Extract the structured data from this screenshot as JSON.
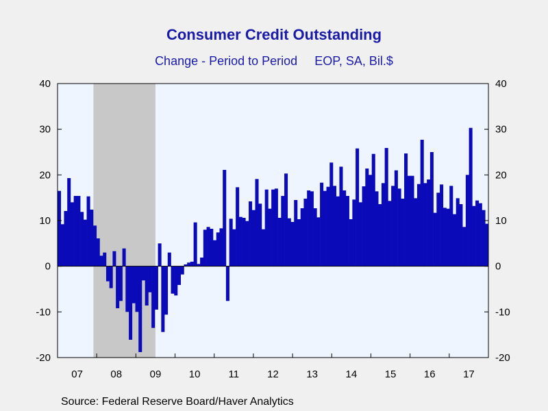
{
  "chart_data": {
    "type": "bar",
    "title": "Consumer Credit Outstanding",
    "subtitle": "Change - Period to Period     EOP, SA, Bil.$",
    "source": "Source:  Federal Reserve Board/Haver Analytics",
    "ylim": [
      -20,
      40
    ],
    "y_ticks": [
      40,
      30,
      20,
      10,
      0,
      -10,
      -20
    ],
    "x_tick_labels": [
      "07",
      "08",
      "09",
      "10",
      "11",
      "12",
      "13",
      "14",
      "15",
      "16",
      "17"
    ],
    "x_range": [
      "2007-01",
      "2017-12"
    ],
    "recession_shading": {
      "start": "2007-12",
      "end": "2009-06"
    },
    "grid": false,
    "colors": {
      "bars": "#0a0ab8",
      "plot_background": "#eef5ff",
      "recession": "#c8c8c8",
      "text_title": "#1a1aa8"
    },
    "series": [
      {
        "values": [
          16.5,
          9.2,
          12.1,
          19.3,
          14.0,
          15.4,
          15.4,
          11.9,
          10.2,
          15.3,
          12.4,
          8.9,
          6.1,
          2.3,
          3.0,
          -3.3,
          -4.8,
          3.3,
          -9.2,
          -7.6,
          3.9,
          -10.0,
          -16.1,
          -8.1,
          -10.0,
          -18.8,
          -3.1,
          -8.6,
          -5.7,
          -13.5,
          -9.5,
          5.0,
          -14.4,
          -10.6,
          3.0,
          -6.0,
          -6.4,
          -4.1,
          -1.8,
          0.4,
          0.8,
          1.0,
          9.6,
          0.5,
          1.9,
          8.0,
          8.6,
          8.2,
          5.7,
          7.4,
          8.3,
          21.1,
          -7.6,
          10.4,
          8.1,
          17.3,
          10.8,
          10.6,
          9.9,
          14.2,
          12.3,
          19.1,
          13.7,
          8.1,
          16.8,
          12.6,
          16.8,
          17.0,
          10.6,
          15.4,
          20.3,
          10.5,
          9.7,
          14.5,
          10.3,
          12.7,
          14.8,
          16.6,
          16.4,
          12.7,
          10.7,
          18.3,
          16.5,
          17.4,
          22.7,
          17.6,
          15.3,
          21.8,
          16.6,
          15.4,
          10.3,
          14.6,
          25.8,
          14.0,
          17.5,
          21.4,
          20.0,
          24.6,
          16.4,
          13.6,
          18.2,
          25.9,
          14.3,
          17.6,
          21.0,
          17.0,
          14.8,
          24.7,
          19.8,
          19.8,
          14.9,
          18.0,
          27.7,
          18.2,
          19.0,
          25.0,
          11.7,
          16.1,
          17.9,
          12.8,
          12.6,
          17.6,
          11.4,
          14.9,
          13.6,
          8.6,
          20.0,
          30.3,
          13.2,
          14.4,
          13.8,
          12.3,
          9.3
        ]
      }
    ]
  }
}
